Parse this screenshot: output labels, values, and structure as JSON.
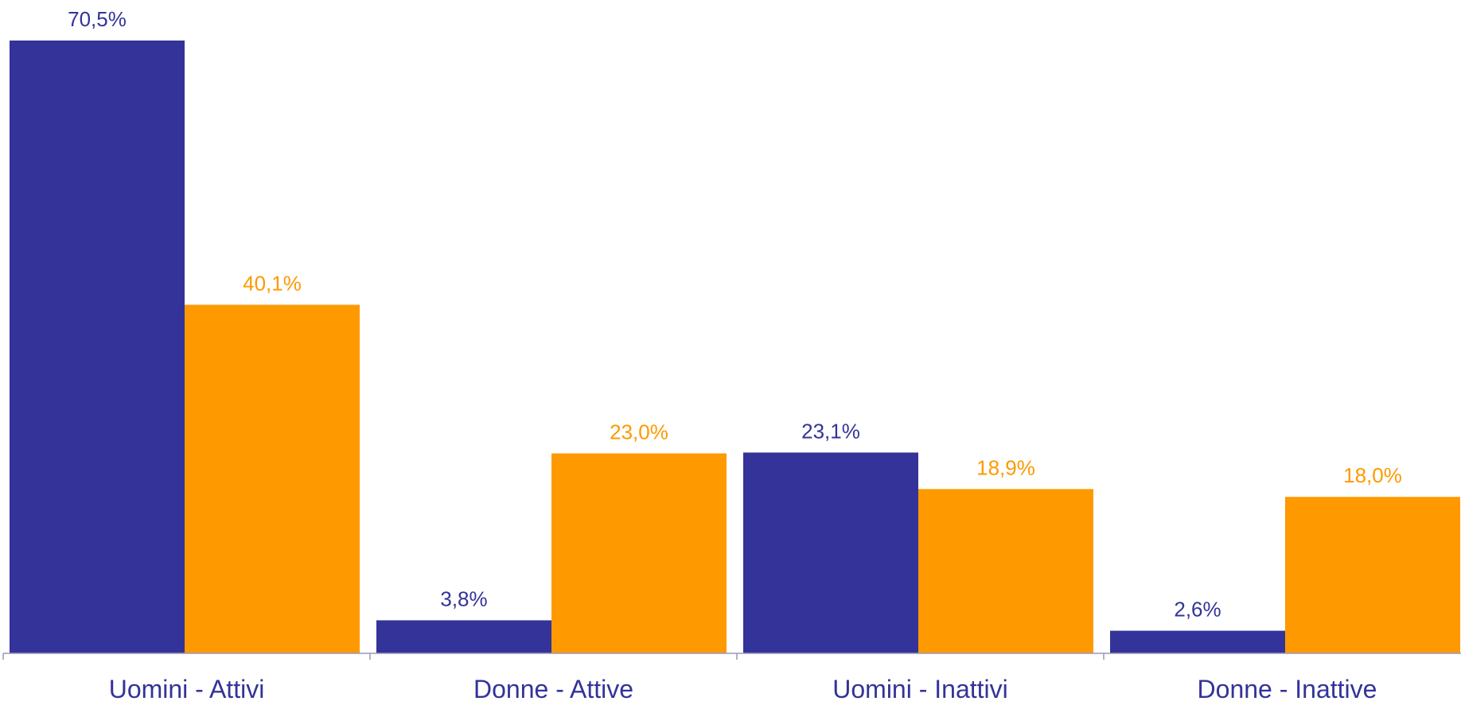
{
  "colors": {
    "series_blue": "#333399",
    "series_orange": "#FF9900",
    "axis": "#9999bb",
    "category_text": "#333399"
  },
  "chart_data": {
    "type": "bar",
    "title": "",
    "xlabel": "",
    "ylabel": "",
    "categories": [
      "Uomini - Attivi",
      "Donne - Attive",
      "Uomini - Inattivi",
      "Donne - Inattive"
    ],
    "series": [
      {
        "color": "#333399",
        "values": [
          70.5,
          3.8,
          23.1,
          2.6
        ],
        "labels": [
          "70,5%",
          "3,8%",
          "23,1%",
          "2,6%"
        ]
      },
      {
        "color": "#FF9900",
        "values": [
          40.1,
          23.0,
          18.9,
          18.0
        ],
        "labels": [
          "40,1%",
          "23,0%",
          "18,9%",
          "18,0%"
        ]
      }
    ],
    "ylim": [
      0,
      75
    ],
    "grid": false,
    "legend": "none"
  }
}
